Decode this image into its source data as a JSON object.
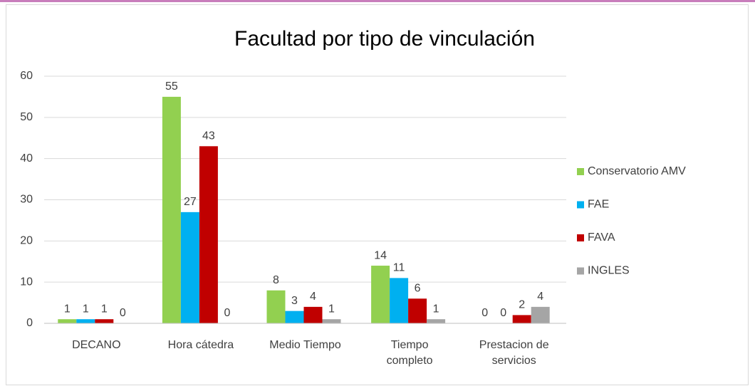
{
  "chart_data": {
    "type": "bar",
    "title": "Facultad por tipo de vinculación",
    "categories": [
      "DECANO",
      "Hora cátedra",
      "Medio Tiempo",
      "Tiempo completo",
      "Prestacion de servicios"
    ],
    "series": [
      {
        "name": "Conservatorio AMV",
        "color": "#92d050",
        "values": [
          1,
          55,
          8,
          14,
          0
        ]
      },
      {
        "name": "FAE",
        "color": "#00b0f0",
        "values": [
          1,
          27,
          3,
          11,
          0
        ]
      },
      {
        "name": "FAVA",
        "color": "#c00000",
        "values": [
          1,
          43,
          4,
          6,
          2
        ]
      },
      {
        "name": "INGLES",
        "color": "#a5a5a5",
        "values": [
          0,
          0,
          1,
          1,
          4
        ]
      }
    ],
    "ylim": [
      0,
      60
    ],
    "yticks": [
      0,
      10,
      20,
      30,
      40,
      50,
      60
    ],
    "grid": true,
    "legend": "right"
  }
}
